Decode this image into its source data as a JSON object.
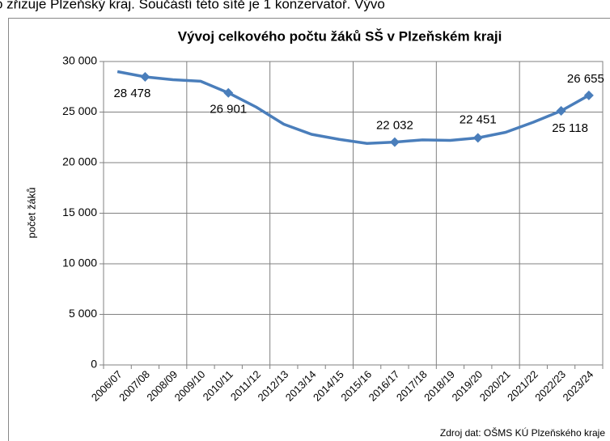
{
  "intro_text": "o zřizuje Plzeňský kraj. Součástí této sítě je 1 konzervatoř. Vývo",
  "chart_data": {
    "type": "line",
    "title": "Vývoj celkového počtu žáků SŠ v Plzeňském kraji",
    "y_label": "počet žáků",
    "source": "Zdroj dat: OŠMS KÚ Plzeňského kraje",
    "categories": [
      "2006/07",
      "2007/08",
      "2008/09",
      "2009/10",
      "2010/11",
      "2011/12",
      "2012/13",
      "2013/14",
      "2014/15",
      "2015/16",
      "2016/17",
      "2017/18",
      "2018/19",
      "2019/20",
      "2020/21",
      "2021/22",
      "2022/23",
      "2023/24"
    ],
    "values": [
      29000,
      28478,
      28200,
      28050,
      26901,
      25500,
      23800,
      22800,
      22300,
      21900,
      22032,
      22250,
      22200,
      22451,
      23000,
      24000,
      25118,
      26655
    ],
    "value_labels": [
      null,
      "28 478",
      null,
      null,
      "26 901",
      null,
      null,
      null,
      null,
      null,
      "22 032",
      null,
      null,
      "22 451",
      null,
      null,
      "25 118",
      "26 655"
    ],
    "color": "#4a7ebb",
    "ylim": [
      0,
      30000
    ],
    "yticks": [
      0,
      {
        "value": 5000,
        "label": "5 000"
      },
      {
        "value": 10000,
        "label": "10 000"
      },
      {
        "value": 15000,
        "label": "15 000"
      },
      {
        "value": 20000,
        "label": "20 000"
      },
      {
        "value": 25000,
        "label": "25 000"
      },
      {
        "value": 30000,
        "label": "30 000"
      }
    ],
    "grid": true
  }
}
